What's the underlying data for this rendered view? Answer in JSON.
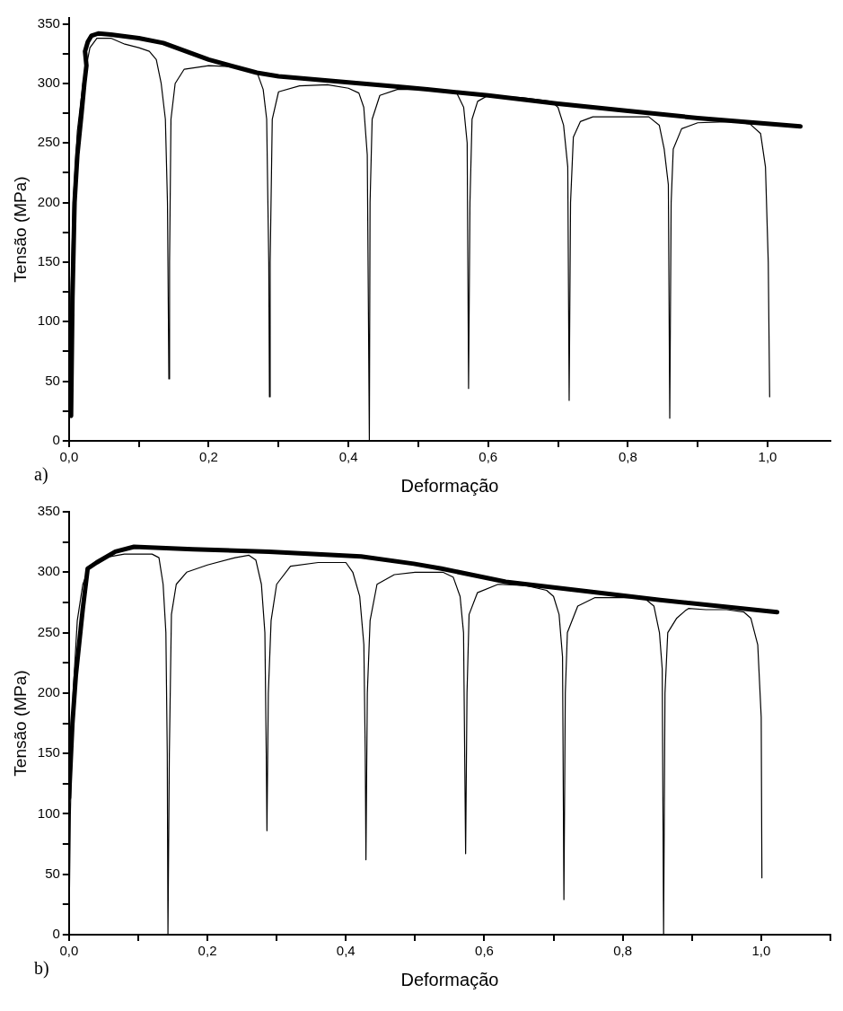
{
  "chart_data": [
    {
      "type": "line",
      "xlabel": "Deformação",
      "ylabel": "Tensão (MPa)",
      "annotations": [
        "a)"
      ],
      "grid": false,
      "legend": false,
      "marker": "none",
      "line_style": "solid",
      "xlim": [
        0,
        1.09
      ],
      "ylim": [
        0,
        355
      ],
      "xticks": [
        {
          "value": 0,
          "label": "0,0"
        },
        {
          "value": 0.1,
          "label": null
        },
        {
          "value": 0.2,
          "label": "0,2"
        },
        {
          "value": 0.3,
          "label": null
        },
        {
          "value": 0.4,
          "label": "0,4"
        },
        {
          "value": 0.5,
          "label": null
        },
        {
          "value": 0.6,
          "label": "0,6"
        },
        {
          "value": 0.7,
          "label": null
        },
        {
          "value": 0.8,
          "label": "0,8"
        },
        {
          "value": 0.9,
          "label": null
        },
        {
          "value": 1.0,
          "label": "1,0"
        }
      ],
      "yticks": [
        0,
        {
          "value": 25,
          "label": null
        },
        50,
        {
          "value": 75,
          "label": null
        },
        100,
        {
          "value": 125,
          "label": null
        },
        150,
        {
          "value": 175,
          "label": null
        },
        200,
        {
          "value": 225,
          "label": null
        },
        250,
        {
          "value": 275,
          "label": null
        },
        300,
        {
          "value": 325,
          "label": null
        },
        350
      ],
      "series": [
        {
          "color": "#000000",
          "x": [
            0,
            0.002,
            0.006,
            0.012,
            0.02,
            0.03,
            0.04,
            0.06,
            0.08,
            0.1,
            0.115,
            0.125,
            0.132,
            0.138,
            0.141,
            0.143,
            0.144,
            0.146,
            0.152,
            0.165,
            0.2,
            0.24,
            0.27,
            0.278,
            0.283,
            0.286,
            0.287,
            0.288,
            0.291,
            0.3,
            0.33,
            0.37,
            0.4,
            0.415,
            0.422,
            0.427,
            0.43,
            0.431,
            0.434,
            0.445,
            0.47,
            0.5,
            0.53,
            0.555,
            0.565,
            0.57,
            0.572,
            0.574,
            0.577,
            0.585,
            0.6,
            0.65,
            0.69,
            0.7,
            0.708,
            0.714,
            0.716,
            0.718,
            0.722,
            0.732,
            0.75,
            0.8,
            0.83,
            0.845,
            0.852,
            0.858,
            0.86,
            0.862,
            0.865,
            0.877,
            0.9,
            0.95,
            0.975,
            0.99,
            0.997,
            1.001,
            1.003
          ],
          "values": [
            0,
            100,
            200,
            260,
            300,
            330,
            338,
            338,
            333,
            330,
            327,
            320,
            300,
            270,
            200,
            52,
            150,
            270,
            300,
            312,
            315,
            314,
            308,
            295,
            270,
            150,
            37,
            150,
            270,
            293,
            298,
            299,
            296,
            292,
            280,
            240,
            0,
            200,
            270,
            290,
            295,
            295,
            294,
            292,
            280,
            250,
            44,
            200,
            270,
            285,
            290,
            288,
            285,
            280,
            265,
            230,
            34,
            200,
            255,
            268,
            272,
            272,
            272,
            265,
            245,
            215,
            19,
            200,
            245,
            262,
            267,
            268,
            266,
            258,
            230,
            150,
            37
          ]
        },
        {
          "color": "#000000",
          "x": [
            0.003,
            0.005,
            0.008,
            0.012,
            0.018,
            0.022,
            0.025,
            0.023,
            0.027,
            0.032,
            0.042,
            0.06,
            0.1,
            0.135,
            0.2,
            0.269,
            0.3,
            0.4,
            0.478,
            0.513,
            0.6,
            0.7,
            0.8,
            0.9,
            1.047
          ],
          "values": [
            21,
            120,
            200,
            240,
            275,
            300,
            315,
            327,
            335,
            340,
            342,
            341,
            338,
            334,
            320,
            309,
            306,
            301,
            297,
            295,
            290,
            283,
            277,
            271,
            264
          ]
        }
      ]
    },
    {
      "type": "line",
      "xlabel": "Deformação",
      "ylabel": "Tensão (MPa)",
      "annotations": [
        "b)"
      ],
      "grid": false,
      "legend": false,
      "marker": "none",
      "line_style": "solid",
      "xlim": [
        0,
        1.1
      ],
      "ylim": [
        0,
        350
      ],
      "xticks": [
        {
          "value": 0,
          "label": "0,0"
        },
        {
          "value": 0.1,
          "label": null
        },
        {
          "value": 0.2,
          "label": "0,2"
        },
        {
          "value": 0.3,
          "label": null
        },
        {
          "value": 0.4,
          "label": "0,4"
        },
        {
          "value": 0.5,
          "label": null
        },
        {
          "value": 0.6,
          "label": "0,6"
        },
        {
          "value": 0.7,
          "label": null
        },
        {
          "value": 0.8,
          "label": "0,8"
        },
        {
          "value": 0.9,
          "label": null
        },
        {
          "value": 1.0,
          "label": "1,0"
        },
        {
          "value": 1.1,
          "label": null
        }
      ],
      "yticks": [
        0,
        {
          "value": 25,
          "label": null
        },
        50,
        {
          "value": 75,
          "label": null
        },
        100,
        {
          "value": 125,
          "label": null
        },
        150,
        {
          "value": 175,
          "label": null
        },
        200,
        {
          "value": 225,
          "label": null
        },
        250,
        {
          "value": 275,
          "label": null
        },
        300,
        {
          "value": 325,
          "label": null
        },
        350
      ],
      "series": [
        {
          "color": "#000000",
          "x": [
            0,
            0.002,
            0.006,
            0.012,
            0.02,
            0.03,
            0.045,
            0.06,
            0.08,
            0.1,
            0.12,
            0.13,
            0.136,
            0.14,
            0.142,
            0.143,
            0.145,
            0.148,
            0.155,
            0.17,
            0.2,
            0.24,
            0.26,
            0.27,
            0.278,
            0.283,
            0.285,
            0.286,
            0.288,
            0.292,
            0.3,
            0.32,
            0.36,
            0.4,
            0.41,
            0.42,
            0.426,
            0.428,
            0.429,
            0.431,
            0.435,
            0.445,
            0.47,
            0.5,
            0.54,
            0.555,
            0.565,
            0.57,
            0.573,
            0.575,
            0.578,
            0.59,
            0.62,
            0.66,
            0.69,
            0.7,
            0.708,
            0.713,
            0.715,
            0.717,
            0.72,
            0.735,
            0.76,
            0.8,
            0.83,
            0.845,
            0.853,
            0.857,
            0.859,
            0.861,
            0.865,
            0.878,
            0.89,
            0.895,
            0.92,
            0.95,
            0.975,
            0.985,
            0.995,
            1.0,
            1.001
          ],
          "values": [
            0,
            100,
            200,
            260,
            290,
            305,
            310,
            313,
            315,
            315,
            315,
            312,
            290,
            250,
            150,
            0,
            150,
            265,
            290,
            300,
            306,
            312,
            314,
            310,
            290,
            250,
            150,
            86,
            200,
            260,
            290,
            305,
            308,
            308,
            300,
            280,
            240,
            150,
            62,
            200,
            260,
            290,
            298,
            300,
            300,
            296,
            280,
            250,
            67,
            200,
            265,
            283,
            290,
            289,
            285,
            280,
            265,
            230,
            29,
            200,
            250,
            272,
            279,
            279,
            279,
            272,
            250,
            220,
            0,
            200,
            250,
            262,
            268,
            270,
            269,
            269,
            267,
            262,
            240,
            180,
            47
          ]
        },
        {
          "color": "#000000",
          "x": [
            0,
            0.005,
            0.01,
            0.02,
            0.027,
            0.04,
            0.067,
            0.094,
            0.179,
            0.289,
            0.422,
            0.498,
            0.538,
            0.631,
            0.75,
            0.854,
            1.023
          ],
          "values": [
            113,
            175,
            215,
            270,
            303,
            308,
            317,
            321,
            319,
            317,
            313,
            307,
            303,
            292,
            284,
            277,
            267
          ]
        }
      ]
    }
  ]
}
